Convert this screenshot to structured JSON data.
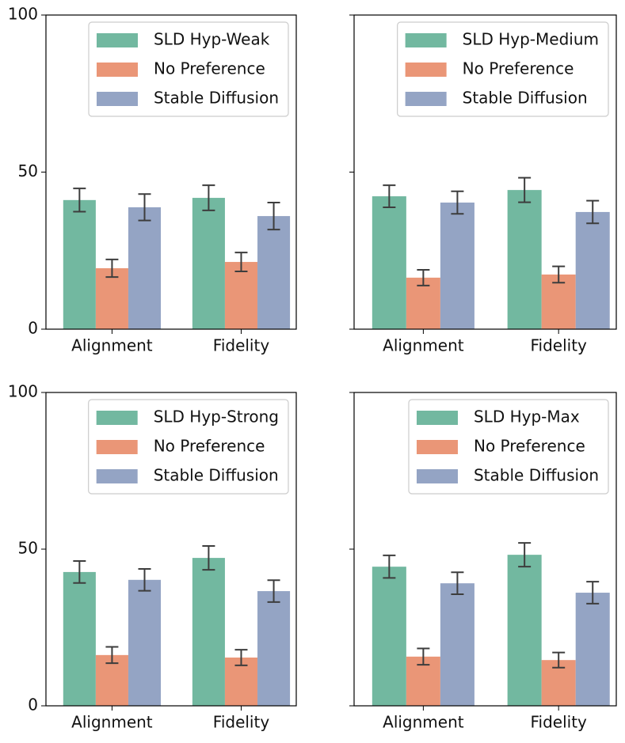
{
  "chart_data": [
    {
      "type": "bar",
      "categories": [
        "Alignment",
        "Fidelity"
      ],
      "ylim": [
        0,
        100
      ],
      "yticks": [
        0,
        50,
        100
      ],
      "ytick_labels": true,
      "legend": "upper right",
      "series": [
        {
          "name": "SLD Hyp-Weak",
          "color": "#72b8a0",
          "values": [
            41.1,
            41.8
          ],
          "errors": [
            3.7,
            4.0
          ]
        },
        {
          "name": "No Preference",
          "color": "#ea9677",
          "values": [
            19.4,
            21.4
          ],
          "errors": [
            2.8,
            3.0
          ]
        },
        {
          "name": "Stable Diffusion",
          "color": "#94a4c4",
          "values": [
            38.8,
            36.0
          ],
          "errors": [
            4.2,
            4.3
          ]
        }
      ]
    },
    {
      "type": "bar",
      "categories": [
        "Alignment",
        "Fidelity"
      ],
      "ylim": [
        0,
        100
      ],
      "yticks": [
        0,
        50,
        100
      ],
      "ytick_labels": false,
      "legend": "upper right",
      "series": [
        {
          "name": "SLD Hyp-Medium",
          "color": "#72b8a0",
          "values": [
            42.3,
            44.3
          ],
          "errors": [
            3.5,
            3.9
          ]
        },
        {
          "name": "No Preference",
          "color": "#ea9677",
          "values": [
            16.4,
            17.4
          ],
          "errors": [
            2.5,
            2.6
          ]
        },
        {
          "name": "Stable Diffusion",
          "color": "#94a4c4",
          "values": [
            40.3,
            37.3
          ],
          "errors": [
            3.6,
            3.6
          ]
        }
      ]
    },
    {
      "type": "bar",
      "categories": [
        "Alignment",
        "Fidelity"
      ],
      "ylim": [
        0,
        100
      ],
      "yticks": [
        0,
        50,
        100
      ],
      "ytick_labels": true,
      "legend": "upper right",
      "series": [
        {
          "name": "SLD Hyp-Strong",
          "color": "#72b8a0",
          "values": [
            42.7,
            47.2
          ],
          "errors": [
            3.5,
            3.8
          ]
        },
        {
          "name": "No Preference",
          "color": "#ea9677",
          "values": [
            16.2,
            15.4
          ],
          "errors": [
            2.6,
            2.5
          ]
        },
        {
          "name": "Stable Diffusion",
          "color": "#94a4c4",
          "values": [
            40.2,
            36.6
          ],
          "errors": [
            3.5,
            3.5
          ]
        }
      ]
    },
    {
      "type": "bar",
      "categories": [
        "Alignment",
        "Fidelity"
      ],
      "ylim": [
        0,
        100
      ],
      "yticks": [
        0,
        50,
        100
      ],
      "ytick_labels": false,
      "legend": "upper right",
      "series": [
        {
          "name": "SLD Hyp-Max",
          "color": "#72b8a0",
          "values": [
            44.4,
            48.2
          ],
          "errors": [
            3.6,
            3.8
          ]
        },
        {
          "name": "No Preference",
          "color": "#ea9677",
          "values": [
            15.7,
            14.6
          ],
          "errors": [
            2.6,
            2.4
          ]
        },
        {
          "name": "Stable Diffusion",
          "color": "#94a4c4",
          "values": [
            39.1,
            36.1
          ],
          "errors": [
            3.5,
            3.5
          ]
        }
      ]
    }
  ]
}
